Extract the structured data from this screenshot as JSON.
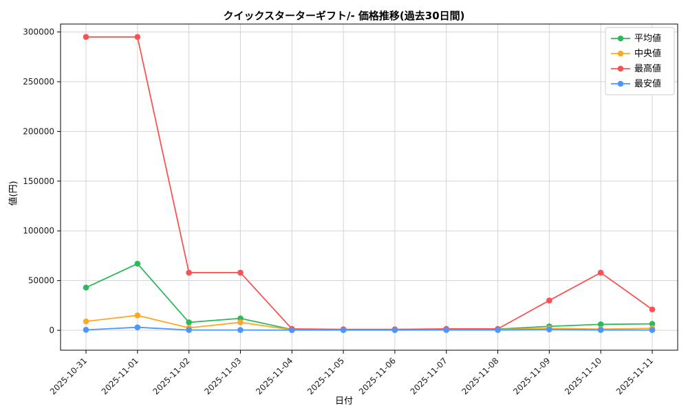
{
  "chart_data": {
    "type": "line",
    "title": "クイックスターターギフト/- 価格推移(過去30日間)",
    "xlabel": "日付",
    "ylabel": "値(円)",
    "ylim": [
      -20000,
      308000
    ],
    "yticks": [
      0,
      50000,
      100000,
      150000,
      200000,
      250000,
      300000
    ],
    "grid": true,
    "legend_position": "top-right",
    "categories": [
      "2025-10-31",
      "2025-11-01",
      "2025-11-02",
      "2025-11-03",
      "2025-11-04",
      "2025-11-05",
      "2025-11-06",
      "2025-11-07",
      "2025-11-08",
      "2025-11-09",
      "2025-11-10",
      "2025-11-11"
    ],
    "series": [
      {
        "key": "mean",
        "name": "平均値",
        "color": "#2eb85c",
        "values": [
          43000,
          67000,
          8000,
          12000,
          800,
          800,
          800,
          1000,
          1200,
          4000,
          6000,
          6500
        ]
      },
      {
        "key": "median",
        "name": "中央値",
        "color": "#ffa726",
        "values": [
          9000,
          15000,
          2500,
          8000,
          500,
          500,
          500,
          600,
          800,
          2000,
          1200,
          2000
        ]
      },
      {
        "key": "max",
        "name": "最高値",
        "color": "#fa5252",
        "values": [
          295000,
          295000,
          58000,
          58000,
          1500,
          1000,
          1000,
          1500,
          1500,
          30000,
          58000,
          21000
        ]
      },
      {
        "key": "min",
        "name": "最安値",
        "color": "#4d96ff",
        "values": [
          500,
          3000,
          300,
          300,
          200,
          200,
          200,
          300,
          300,
          800,
          300,
          300
        ]
      }
    ],
    "colors": {
      "grid": "#d3d3d3",
      "axis": "#000000",
      "tick_text": "#1a1a1a",
      "legend_border": "#cccccc",
      "legend_bg": "#ffffff"
    }
  }
}
